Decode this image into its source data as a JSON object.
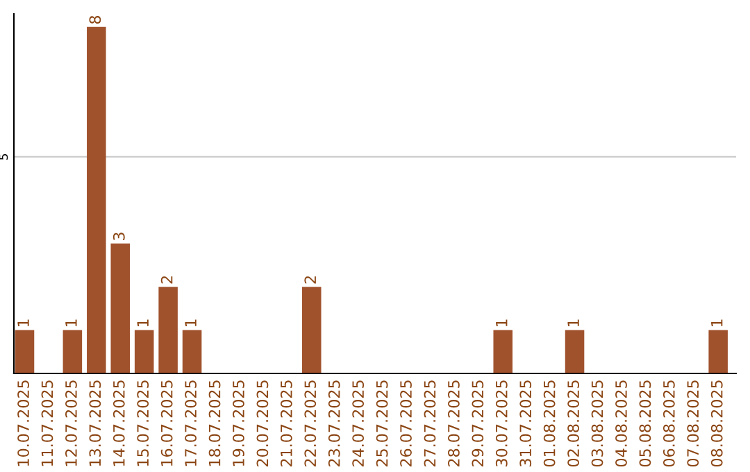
{
  "chart_data": {
    "type": "bar",
    "categories": [
      "10.07.2025",
      "11.07.2025",
      "12.07.2025",
      "13.07.2025",
      "14.07.2025",
      "15.07.2025",
      "16.07.2025",
      "17.07.2025",
      "18.07.2025",
      "19.07.2025",
      "20.07.2025",
      "21.07.2025",
      "22.07.2025",
      "23.07.2025",
      "24.07.2025",
      "25.07.2025",
      "26.07.2025",
      "27.07.2025",
      "28.07.2025",
      "29.07.2025",
      "30.07.2025",
      "31.07.2025",
      "01.08.2025",
      "02.08.2025",
      "03.08.2025",
      "04.08.2025",
      "05.08.2025",
      "06.08.2025",
      "07.08.2025",
      "08.08.2025"
    ],
    "values": [
      1,
      0,
      1,
      8,
      3,
      1,
      2,
      1,
      0,
      0,
      0,
      0,
      2,
      0,
      0,
      0,
      0,
      0,
      0,
      0,
      1,
      0,
      0,
      1,
      0,
      0,
      0,
      0,
      0,
      1
    ],
    "value_labels": [
      "1",
      null,
      "1",
      "8",
      "3",
      "1",
      "2",
      "1",
      null,
      null,
      null,
      null,
      "2",
      null,
      null,
      null,
      null,
      null,
      null,
      null,
      "1",
      null,
      null,
      "1",
      null,
      null,
      null,
      null,
      null,
      "1"
    ],
    "color": "#a0522d",
    "ylim": [
      0,
      8.3
    ],
    "yticks": [
      5
    ],
    "grid": "y"
  }
}
